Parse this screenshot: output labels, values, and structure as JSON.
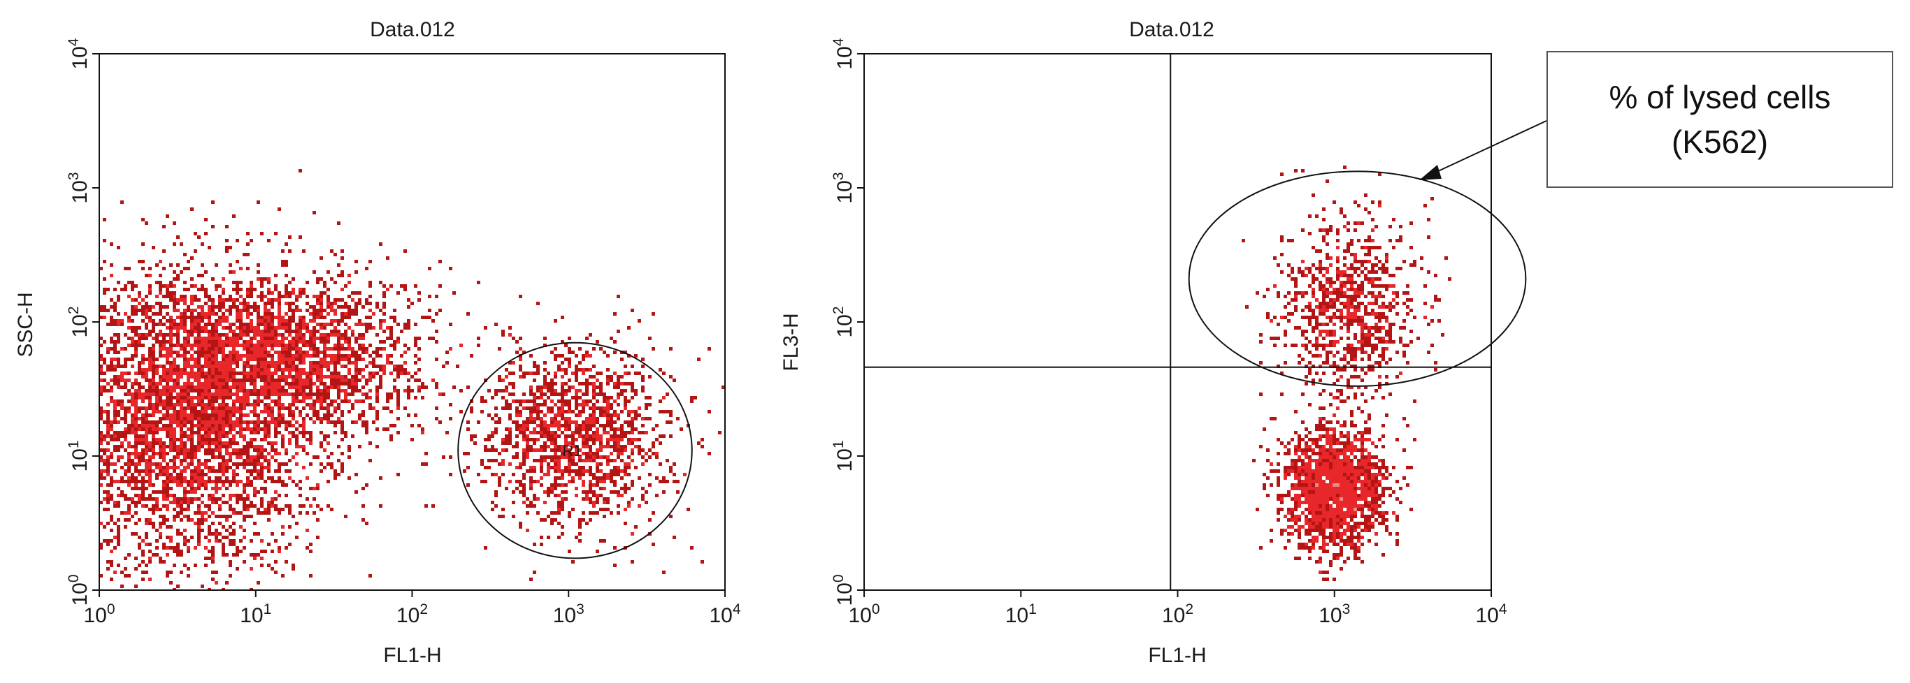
{
  "colors": {
    "event_base": "#e8272a",
    "event_dark": "#b31414",
    "event_core": "#f08a8a",
    "event_hot": "#f4c4c4",
    "gate_line": "#111111",
    "frame": "#111111"
  },
  "callout": {
    "line1": "% of lysed cells",
    "line2": "(K562)"
  },
  "chart_data": [
    {
      "type": "scatter",
      "title": "Data.012",
      "xlabel": "FL1-H",
      "ylabel": "SSC-H",
      "xscale": "log",
      "yscale": "log",
      "xlim": [
        1,
        10000
      ],
      "ylim": [
        1,
        10000
      ],
      "x_ticks": [
        {
          "base": "10",
          "exp": "0"
        },
        {
          "base": "10",
          "exp": "1"
        },
        {
          "base": "10",
          "exp": "2"
        },
        {
          "base": "10",
          "exp": "3"
        },
        {
          "base": "10",
          "exp": "4"
        }
      ],
      "y_ticks": [
        {
          "base": "10",
          "exp": "0"
        },
        {
          "base": "10",
          "exp": "1"
        },
        {
          "base": "10",
          "exp": "2"
        },
        {
          "base": "10",
          "exp": "3"
        },
        {
          "base": "10",
          "exp": "4"
        }
      ],
      "populations": [
        {
          "center_log": [
            0.55,
            1.25
          ],
          "spread_log": [
            0.45,
            0.55
          ],
          "count": 4200,
          "role": "dense diagonal population"
        },
        {
          "center_log": [
            1.2,
            1.75
          ],
          "spread_log": [
            0.45,
            0.3
          ],
          "count": 2200,
          "role": "upper extension"
        },
        {
          "center_log": [
            3.05,
            1.15
          ],
          "spread_log": [
            0.3,
            0.33
          ],
          "count": 1500,
          "role": "target cells in gate R1"
        }
      ],
      "gate": {
        "label": "R1",
        "shape": "ellipse",
        "center": [
          1100,
          11
        ],
        "x_range": [
          200,
          7000
        ],
        "y_range": [
          2.1,
          85
        ]
      }
    },
    {
      "type": "scatter",
      "title": "Data.012",
      "xlabel": "FL1-H",
      "ylabel": "FL3-H",
      "xscale": "log",
      "yscale": "log",
      "xlim": [
        1,
        10000
      ],
      "ylim": [
        1,
        10000
      ],
      "x_ticks": [
        {
          "base": "10",
          "exp": "0"
        },
        {
          "base": "10",
          "exp": "1"
        },
        {
          "base": "10",
          "exp": "2"
        },
        {
          "base": "10",
          "exp": "3"
        },
        {
          "base": "10",
          "exp": "4"
        }
      ],
      "y_ticks": [
        {
          "base": "10",
          "exp": "0"
        },
        {
          "base": "10",
          "exp": "1"
        },
        {
          "base": "10",
          "exp": "2"
        },
        {
          "base": "10",
          "exp": "3"
        },
        {
          "base": "10",
          "exp": "4"
        }
      ],
      "quadrant": {
        "x": 90,
        "y": 46
      },
      "populations": [
        {
          "center_log": [
            3.0,
            0.75
          ],
          "spread_log": [
            0.16,
            0.22
          ],
          "count": 1800,
          "role": "live target cells (FL3 low)"
        },
        {
          "center_log": [
            3.1,
            2.1
          ],
          "spread_log": [
            0.22,
            0.35
          ],
          "count": 900,
          "role": "lysed target cells (FL3 high)"
        }
      ],
      "gate": {
        "label": "",
        "shape": "ellipse",
        "center": [
          1400,
          210
        ],
        "x_range": [
          260,
          20000
        ],
        "y_range": [
          40,
          1600
        ]
      }
    }
  ]
}
